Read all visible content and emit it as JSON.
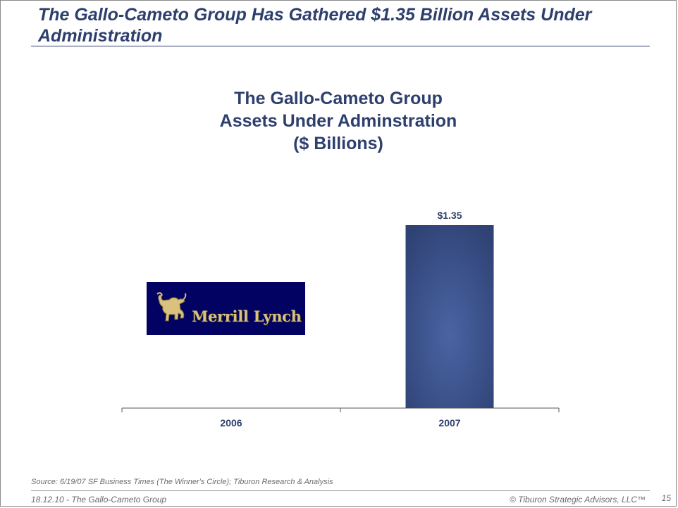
{
  "slide": {
    "title": "The Gallo-Cameto Group Has Gathered $1.35 Billion Assets Under Administration"
  },
  "chart_data": {
    "type": "bar",
    "title_lines": [
      "The Gallo-Cameto Group",
      "Assets Under Adminstration",
      "($ Billions)"
    ],
    "categories": [
      "2006",
      "2007"
    ],
    "values": [
      null,
      1.35
    ],
    "data_labels": [
      "",
      "$1.35"
    ],
    "ylim": [
      0,
      1.35
    ],
    "grid": false,
    "bar_color": "#3a4f86"
  },
  "logo": {
    "text": "Merrill Lynch",
    "icon": "bull-icon"
  },
  "footer": {
    "source": "Source:  6/19/07 SF Business Times (The Winner's Circle); Tiburon Research & Analysis",
    "left": "18.12.10 - The Gallo-Cameto Group",
    "right": "© Tiburon Strategic Advisors, LLC™",
    "page_number": "15"
  }
}
